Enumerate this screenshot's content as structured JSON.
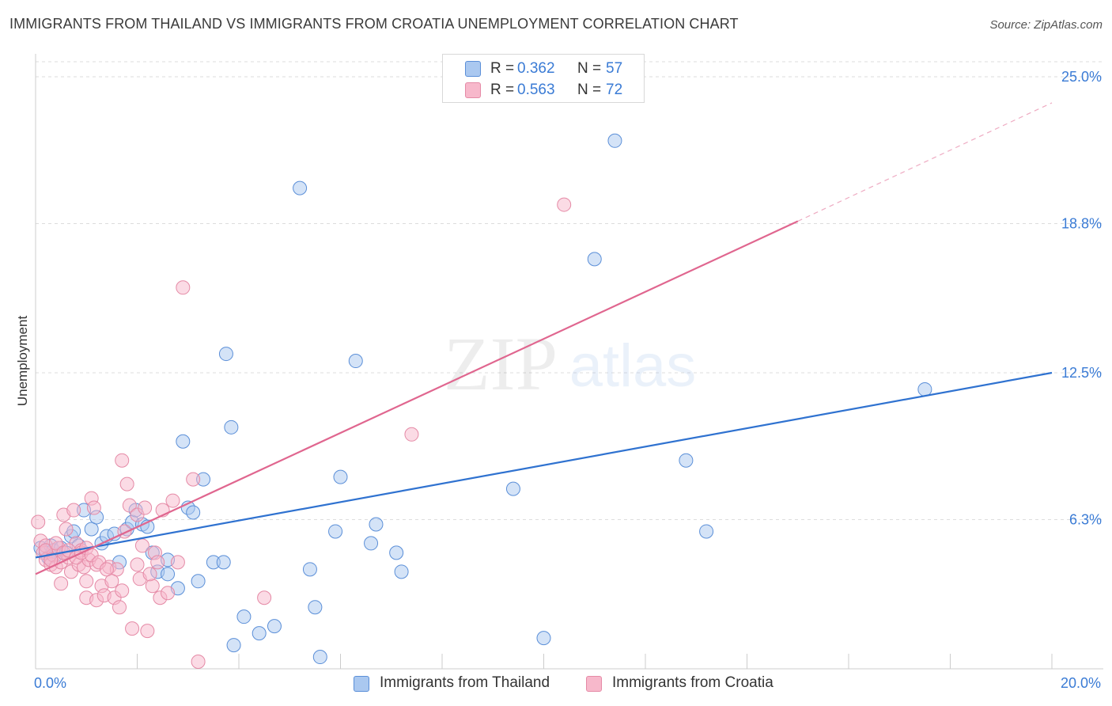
{
  "title": "IMMIGRANTS FROM THAILAND VS IMMIGRANTS FROM CROATIA UNEMPLOYMENT CORRELATION CHART",
  "source": "Source: ZipAtlas.com",
  "watermark": {
    "zip": "ZIP",
    "atlas": "atlas"
  },
  "colors": {
    "blue_fill": "#aac8f0",
    "blue_stroke": "#5b8fd8",
    "blue_line": "#2f72d0",
    "pink_fill": "#f7b8cb",
    "pink_stroke": "#e58aa6",
    "pink_line": "#e0668f",
    "value_text": "#3a7bd5",
    "grid": "#dddddd"
  },
  "legend_stats": [
    {
      "series": "Immigrants from Thailand",
      "r_label": "R =",
      "r_value": "0.362",
      "n_label": "N =",
      "n_value": "57"
    },
    {
      "series": "Immigrants from Croatia",
      "r_label": "R =",
      "r_value": "0.563",
      "n_label": "N =",
      "n_value": "72"
    }
  ],
  "chart_data": {
    "type": "scatter",
    "title": "IMMIGRANTS FROM THAILAND VS IMMIGRANTS FROM CROATIA UNEMPLOYMENT CORRELATION CHART",
    "xlabel": "",
    "ylabel": "Unemployment",
    "xlim": [
      0,
      20
    ],
    "ylim": [
      0,
      25
    ],
    "x_tick_labels": [
      {
        "value": 0,
        "label": "0.0%"
      },
      {
        "value": 20,
        "label": "20.0%"
      }
    ],
    "y_tick_labels": [
      {
        "value": 6.3,
        "label": "6.3%"
      },
      {
        "value": 12.5,
        "label": "12.5%"
      },
      {
        "value": 18.8,
        "label": "18.8%"
      },
      {
        "value": 25.0,
        "label": "25.0%"
      }
    ],
    "x_minor_ticks": [
      0,
      2,
      4,
      6,
      8,
      10,
      12,
      14,
      16,
      18,
      20
    ],
    "grid": true,
    "legend_position": "bottom-center",
    "series": [
      {
        "name": "Immigrants from Thailand",
        "color": "blue",
        "points": [
          [
            0.1,
            5.1
          ],
          [
            0.2,
            4.9
          ],
          [
            0.25,
            4.7
          ],
          [
            0.3,
            5.2
          ],
          [
            0.35,
            5.0
          ],
          [
            0.4,
            4.8
          ],
          [
            0.5,
            5.1
          ],
          [
            0.6,
            4.9
          ],
          [
            0.7,
            5.6
          ],
          [
            0.75,
            5.8
          ],
          [
            0.85,
            5.2
          ],
          [
            0.95,
            6.7
          ],
          [
            1.1,
            5.9
          ],
          [
            1.2,
            6.4
          ],
          [
            1.3,
            5.3
          ],
          [
            1.4,
            5.6
          ],
          [
            1.55,
            5.7
          ],
          [
            1.65,
            4.5
          ],
          [
            1.8,
            5.9
          ],
          [
            1.9,
            6.2
          ],
          [
            1.97,
            6.7
          ],
          [
            2.1,
            6.1
          ],
          [
            2.2,
            6.0
          ],
          [
            2.3,
            4.9
          ],
          [
            2.4,
            4.1
          ],
          [
            2.6,
            4.6
          ],
          [
            2.6,
            4.0
          ],
          [
            2.8,
            3.4
          ],
          [
            2.9,
            9.6
          ],
          [
            3.0,
            6.8
          ],
          [
            3.1,
            6.6
          ],
          [
            3.3,
            8.0
          ],
          [
            3.5,
            4.5
          ],
          [
            3.2,
            3.7
          ],
          [
            3.7,
            4.5
          ],
          [
            3.75,
            13.3
          ],
          [
            3.85,
            10.2
          ],
          [
            3.9,
            1.0
          ],
          [
            4.1,
            2.2
          ],
          [
            4.4,
            1.5
          ],
          [
            4.7,
            1.8
          ],
          [
            5.2,
            20.3
          ],
          [
            5.4,
            4.2
          ],
          [
            5.5,
            2.6
          ],
          [
            5.6,
            0.5
          ],
          [
            5.9,
            5.8
          ],
          [
            6.0,
            8.1
          ],
          [
            6.3,
            13.0
          ],
          [
            6.6,
            5.3
          ],
          [
            6.7,
            6.1
          ],
          [
            7.1,
            4.9
          ],
          [
            7.2,
            4.1
          ],
          [
            9.4,
            7.6
          ],
          [
            10.0,
            1.3
          ],
          [
            11.0,
            17.3
          ],
          [
            11.4,
            22.3
          ],
          [
            12.8,
            8.8
          ],
          [
            13.2,
            5.8
          ],
          [
            17.5,
            11.8
          ]
        ],
        "trend": {
          "x": [
            0,
            20
          ],
          "y": [
            4.7,
            12.5
          ]
        }
      },
      {
        "name": "Immigrants from Croatia",
        "color": "pink",
        "points": [
          [
            0.05,
            6.2
          ],
          [
            0.1,
            5.4
          ],
          [
            0.15,
            4.9
          ],
          [
            0.2,
            4.6
          ],
          [
            0.2,
            5.2
          ],
          [
            0.3,
            4.4
          ],
          [
            0.35,
            4.8
          ],
          [
            0.4,
            4.3
          ],
          [
            0.45,
            5.1
          ],
          [
            0.5,
            4.5
          ],
          [
            0.5,
            3.6
          ],
          [
            0.55,
            6.5
          ],
          [
            0.6,
            5.9
          ],
          [
            0.65,
            4.7
          ],
          [
            0.7,
            4.1
          ],
          [
            0.75,
            6.7
          ],
          [
            0.8,
            5.3
          ],
          [
            0.85,
            4.4
          ],
          [
            0.9,
            5.0
          ],
          [
            0.95,
            4.3
          ],
          [
            1.0,
            3.7
          ],
          [
            1.0,
            3.0
          ],
          [
            1.05,
            4.6
          ],
          [
            1.1,
            7.2
          ],
          [
            1.15,
            6.8
          ],
          [
            1.2,
            4.4
          ],
          [
            1.2,
            2.9
          ],
          [
            1.3,
            3.5
          ],
          [
            1.35,
            3.1
          ],
          [
            1.45,
            4.3
          ],
          [
            1.55,
            3.0
          ],
          [
            1.6,
            4.2
          ],
          [
            1.65,
            2.6
          ],
          [
            1.7,
            8.8
          ],
          [
            1.75,
            5.8
          ],
          [
            1.8,
            7.8
          ],
          [
            1.85,
            6.9
          ],
          [
            1.9,
            1.7
          ],
          [
            2.0,
            6.5
          ],
          [
            2.05,
            3.8
          ],
          [
            2.1,
            5.2
          ],
          [
            2.15,
            6.8
          ],
          [
            2.2,
            1.6
          ],
          [
            2.3,
            3.5
          ],
          [
            2.35,
            4.9
          ],
          [
            2.4,
            4.5
          ],
          [
            2.45,
            3.0
          ],
          [
            2.5,
            6.7
          ],
          [
            2.6,
            3.2
          ],
          [
            2.7,
            7.1
          ],
          [
            2.8,
            4.5
          ],
          [
            2.9,
            16.1
          ],
          [
            3.1,
            8.0
          ],
          [
            3.2,
            0.3
          ],
          [
            4.5,
            3.0
          ],
          [
            7.4,
            9.9
          ],
          [
            10.4,
            19.6
          ],
          [
            0.2,
            5.0
          ],
          [
            0.3,
            4.6
          ],
          [
            0.4,
            5.3
          ],
          [
            0.55,
            4.9
          ],
          [
            0.65,
            5.0
          ],
          [
            0.8,
            4.7
          ],
          [
            0.9,
            4.9
          ],
          [
            1.0,
            5.1
          ],
          [
            1.1,
            4.8
          ],
          [
            1.25,
            4.5
          ],
          [
            1.4,
            4.2
          ],
          [
            1.5,
            3.7
          ],
          [
            1.7,
            3.3
          ],
          [
            2.0,
            4.4
          ],
          [
            2.25,
            4.0
          ]
        ],
        "trend": {
          "x": [
            0,
            15
          ],
          "y": [
            4.0,
            18.9
          ]
        },
        "trend_extension": {
          "x": [
            15,
            20
          ],
          "y": [
            18.9,
            23.9
          ]
        }
      }
    ]
  }
}
